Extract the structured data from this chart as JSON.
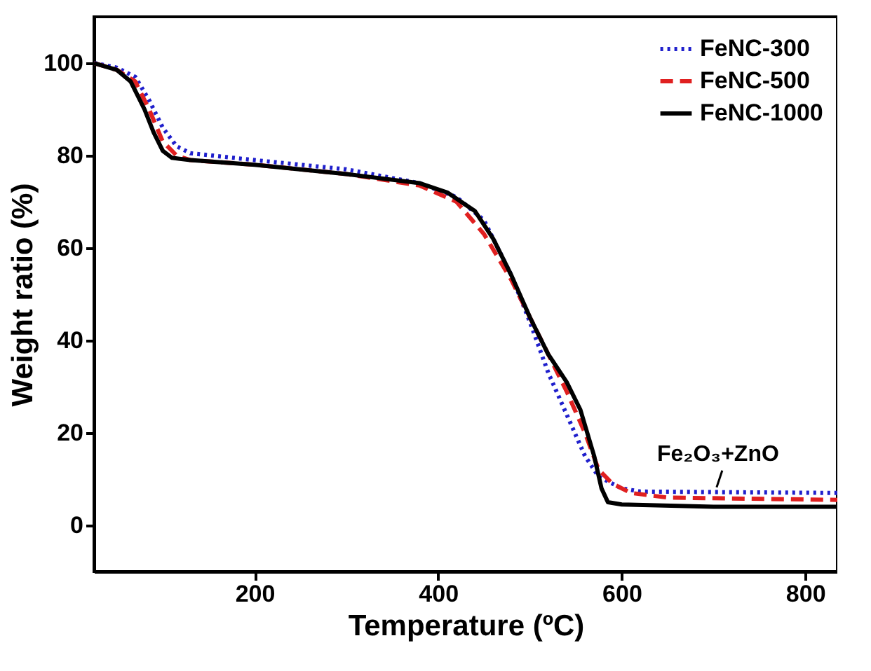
{
  "chart_data": {
    "type": "line",
    "xlabel": "Temperature (ºC)",
    "ylabel": "Weight ratio (%)",
    "xlim": [
      25,
      835
    ],
    "ylim": [
      -10,
      110
    ],
    "xticks": [
      200,
      400,
      600,
      800
    ],
    "yticks": [
      0,
      20,
      40,
      60,
      80,
      100
    ],
    "grid": false,
    "legend": "top right",
    "annotations": [
      {
        "text": "Fe₂O₃+ZnO",
        "x": 705,
        "y": 7
      }
    ],
    "series": [
      {
        "name": "FeNC-300",
        "color": "#1f1fcc",
        "line_style": "dotted",
        "x": [
          25,
          50,
          70,
          85,
          100,
          115,
          130,
          200,
          300,
          380,
          420,
          450,
          480,
          500,
          520,
          540,
          560,
          575,
          600,
          620,
          835
        ],
        "values": [
          100,
          99,
          97,
          92,
          86,
          82,
          80.5,
          79,
          77,
          74,
          71,
          66,
          54,
          44,
          33,
          24,
          15,
          10.5,
          8,
          7.3,
          7
        ]
      },
      {
        "name": "FeNC-500",
        "color": "#e02020",
        "line_style": "dashed",
        "x": [
          25,
          50,
          70,
          85,
          100,
          115,
          130,
          200,
          300,
          380,
          420,
          450,
          480,
          500,
          520,
          540,
          560,
          575,
          590,
          610,
          650,
          835
        ],
        "values": [
          100,
          98.5,
          96,
          90,
          83,
          80,
          79,
          78,
          76,
          73.5,
          70,
          63,
          53,
          45,
          37,
          29,
          20,
          12,
          9,
          7,
          6,
          5.5
        ]
      },
      {
        "name": "FeNC-1000",
        "color": "#000000",
        "line_style": "solid",
        "x": [
          25,
          50,
          65,
          80,
          90,
          100,
          110,
          130,
          200,
          300,
          380,
          410,
          440,
          460,
          480,
          500,
          520,
          540,
          555,
          570,
          578,
          585,
          600,
          700,
          835
        ],
        "values": [
          100,
          98.5,
          96,
          90,
          85,
          81,
          79.5,
          79,
          78,
          76,
          74,
          72,
          68,
          62,
          54,
          45,
          37,
          31,
          25,
          15,
          8,
          5,
          4.5,
          4,
          4
        ]
      }
    ]
  }
}
